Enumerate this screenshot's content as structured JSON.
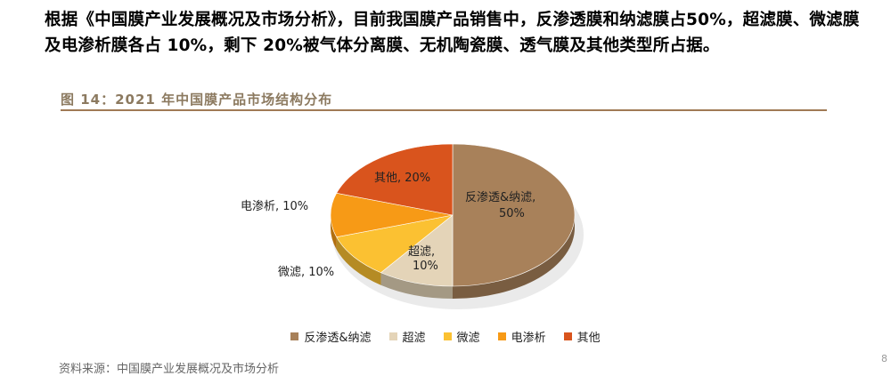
{
  "intro_text": "根据《中国膜产业发展概况及市场分析》，目前我国膜产品销售中，反渗透膜和纳滤膜占50%，超滤膜、微滤膜及电渗析膜各占 10%，剩下 20%被气体分离膜、无机陶瓷膜、透气膜及其他类型所占据。",
  "figure_caption": "图 14：2021 年中国膜产品市场结构分布",
  "source_note": "资料来源：中国膜产业发展概况及市场分析",
  "page_number": "8",
  "chart_data": {
    "type": "pie",
    "title": "",
    "unit": "%",
    "legend_position": "bottom",
    "slices": [
      {
        "name": "反渗透&纳滤",
        "value": 50,
        "label": "反渗透&纳滤,",
        "value_label": "50%",
        "color": "#a8815a"
      },
      {
        "name": "超滤",
        "value": 10,
        "label": "超滤,",
        "value_label": "10%",
        "color": "#e4d4b8"
      },
      {
        "name": "微滤",
        "value": 10,
        "label": "微滤, 10%",
        "value_label": "",
        "color": "#fbc132"
      },
      {
        "name": "电渗析",
        "value": 10,
        "label": "电渗析, 10%",
        "value_label": "",
        "color": "#f79a16"
      },
      {
        "name": "其他",
        "value": 20,
        "label": "其他, 20%",
        "value_label": "",
        "color": "#d9541d"
      }
    ]
  }
}
